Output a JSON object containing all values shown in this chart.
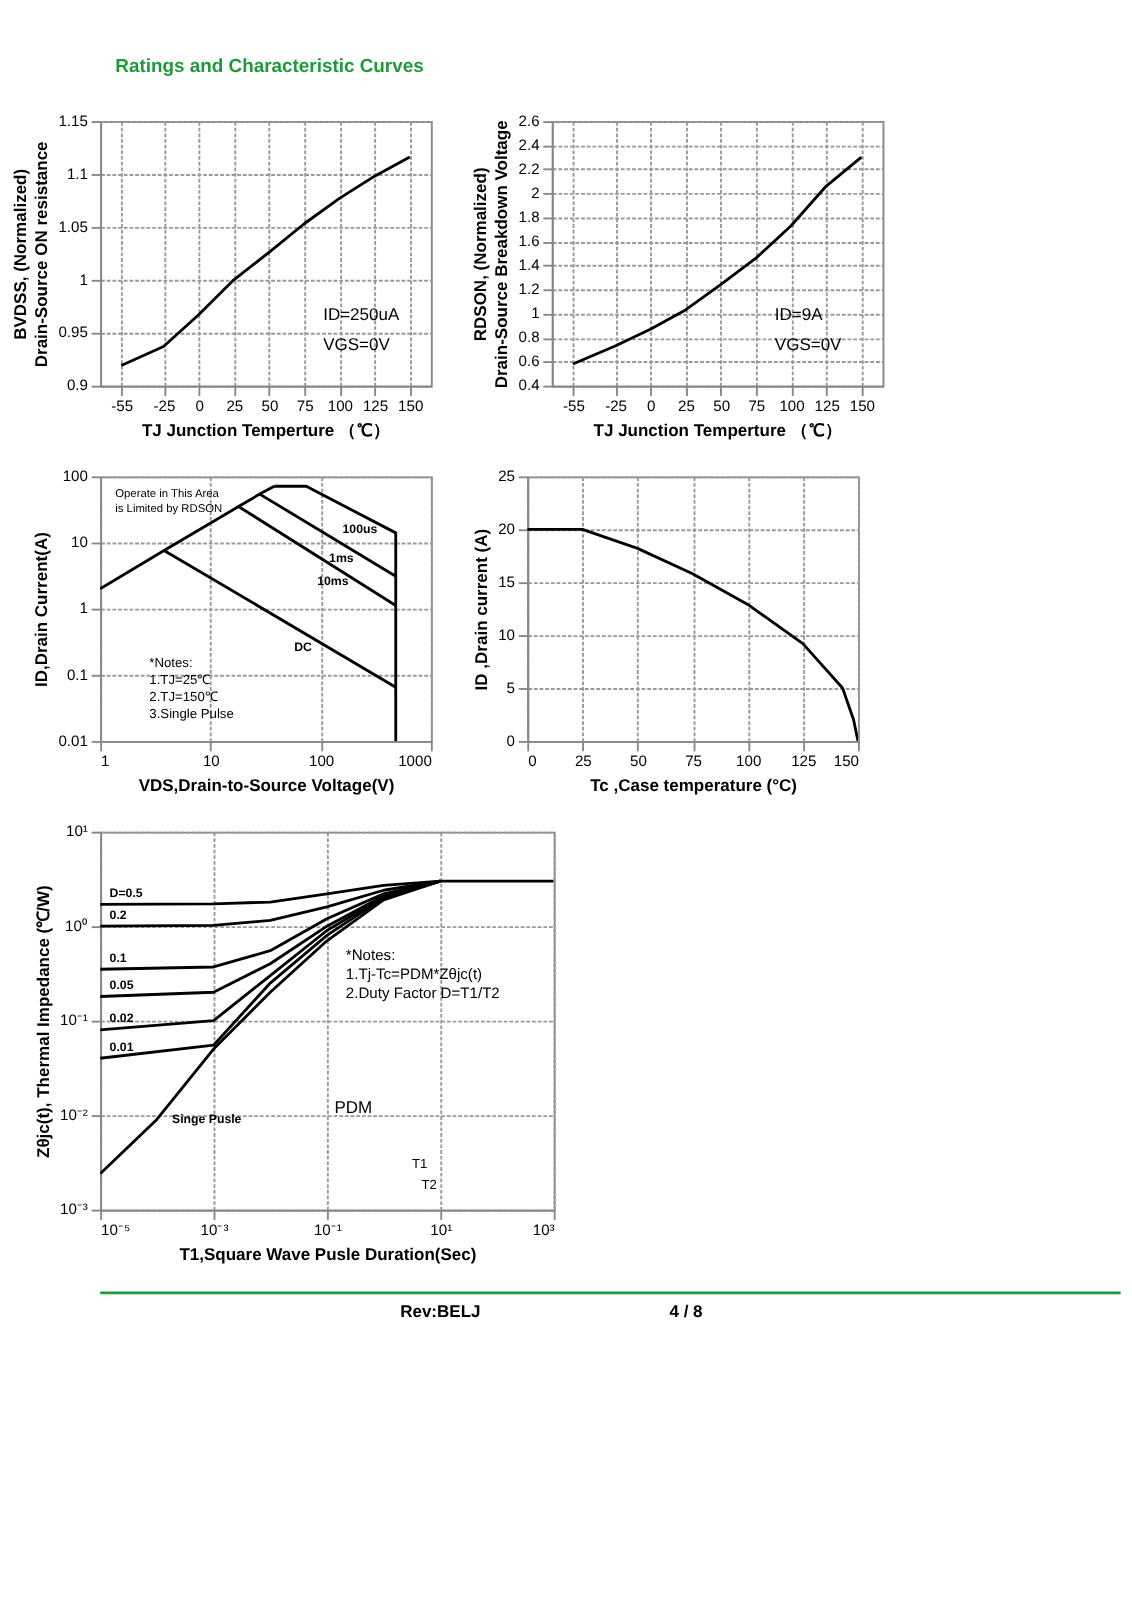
{
  "chart_data": [
    {
      "type": "other",
      "annotations": [
        "Ratings and Characteristic Curves"
      ]
    },
    {
      "type": "line",
      "xlabel": "TJ  Junction Temperture （℃）",
      "ylabel": "BVDSS, (Normalized)\nDrain-Source ON resistance",
      "x": [
        -55,
        -25,
        0,
        25,
        50,
        75,
        100,
        125,
        150
      ],
      "series": [
        {
          "color": "#000000",
          "values": [
            0.919,
            0.937,
            0.967,
            1.0,
            1.026,
            1.053,
            1.077,
            1.098,
            1.116
          ]
        }
      ],
      "xlim": [
        -70,
        165
      ],
      "xticks": [
        -55,
        -25,
        0,
        25,
        50,
        75,
        100,
        125,
        150
      ],
      "ylim": [
        0.9,
        1.15
      ],
      "yticks": [
        0.9,
        0.95,
        1,
        1.05,
        1.1,
        1.15
      ],
      "grid": true,
      "annotations": [
        "ID=250uA",
        "VGS=0V"
      ]
    },
    {
      "type": "line",
      "xlabel": "TJ  Junction Temperture （℃）",
      "ylabel": "RDSON, (Normalized)\nDrain-Source Breakdown Voltage",
      "x": [
        -55,
        -25,
        0,
        25,
        50,
        75,
        100,
        125,
        150
      ],
      "series": [
        {
          "color": "#000000",
          "values": [
            0.58,
            0.73,
            0.87,
            1.03,
            1.24,
            1.46,
            1.73,
            2.06,
            2.3
          ]
        }
      ],
      "xlim": [
        -70,
        165
      ],
      "xticks": [
        -55,
        -25,
        0,
        25,
        50,
        75,
        100,
        125,
        150
      ],
      "ylim": [
        0.4,
        2.6
      ],
      "yticks": [
        0.4,
        0.6,
        0.8,
        1,
        1.2,
        1.4,
        1.6,
        1.8,
        2,
        2.2,
        2.4,
        2.6
      ],
      "grid": true,
      "annotations": [
        "ID=9A",
        "VGS=0V"
      ]
    },
    {
      "type": "line",
      "xlabel": "VDS,Drain-to-Source Voltage(V)",
      "ylabel": "ID,Drain Current(A)",
      "log": "xy",
      "series": [
        {
          "color": "#000000",
          "x": [
            1,
            3.8,
            18,
            28,
            38
          ],
          "values": [
            2,
            7.6,
            35,
            54,
            71
          ]
        },
        {
          "name": "100us",
          "color": "#000000",
          "x": [
            38,
            74,
            480,
            480
          ],
          "values": [
            71,
            71,
            14,
            0.01
          ]
        },
        {
          "name": "1ms",
          "color": "#000000",
          "x": [
            28,
            480
          ],
          "values": [
            54,
            3.1
          ]
        },
        {
          "name": "10ms",
          "color": "#000000",
          "x": [
            18,
            480
          ],
          "values": [
            35,
            1.12
          ]
        },
        {
          "name": "DC",
          "color": "#000000",
          "x": [
            3.8,
            480
          ],
          "values": [
            7.6,
            0.065
          ]
        }
      ],
      "xlim": [
        1,
        1000
      ],
      "xticks": [
        1,
        10,
        100,
        1000
      ],
      "ylim": [
        0.01,
        100
      ],
      "yticks": [
        0.01,
        0.1,
        1,
        10,
        100
      ],
      "grid": true,
      "annotations": [
        "Operate in This Area\nis Limited by RDSON",
        "*Notes:\n1.TJ=25℃\n2.TJ=150℃\n3.Single Pulse"
      ]
    },
    {
      "type": "line",
      "xlabel": "Tc ,Case temperature (°C)",
      "ylabel": "ID ,Drain current (A)",
      "x": [
        0,
        25,
        50,
        75,
        100,
        125,
        143,
        148,
        150
      ],
      "series": [
        {
          "color": "#000000",
          "values": [
            20,
            20,
            18.2,
            15.8,
            12.9,
            9.2,
            5,
            2,
            0
          ]
        }
      ],
      "xlim": [
        0,
        150
      ],
      "xticks": [
        0,
        25,
        50,
        75,
        100,
        125,
        150
      ],
      "ylim": [
        0,
        25
      ],
      "yticks": [
        0,
        5,
        10,
        15,
        20,
        25
      ],
      "grid": true
    },
    {
      "type": "line",
      "xlabel": "T1,Square Wave Pusle Duration(Sec)",
      "ylabel": "Zθjc(t), Thermal  Impedance (℃/W)",
      "log": "xy",
      "series": [
        {
          "name": "D=0.5",
          "color": "#000000",
          "x": [
            1e-05,
            0.001,
            0.01,
            0.1,
            1,
            10
          ],
          "values": [
            1.7,
            1.72,
            1.8,
            2.2,
            2.7,
            3.0
          ]
        },
        {
          "name": "0.2",
          "color": "#000000",
          "x": [
            1e-05,
            0.001,
            0.01,
            0.1,
            1,
            10
          ],
          "values": [
            1.0,
            1.02,
            1.15,
            1.6,
            2.4,
            3.0
          ]
        },
        {
          "name": "0.1",
          "color": "#000000",
          "x": [
            1e-05,
            0.001,
            0.01,
            0.1,
            1,
            10
          ],
          "values": [
            0.35,
            0.37,
            0.55,
            1.2,
            2.2,
            3.0
          ]
        },
        {
          "name": "0.05",
          "color": "#000000",
          "x": [
            1e-05,
            0.001,
            0.01,
            0.1,
            1,
            10
          ],
          "values": [
            0.18,
            0.2,
            0.4,
            1.0,
            2.1,
            3.0
          ]
        },
        {
          "name": "0.02",
          "color": "#000000",
          "x": [
            1e-05,
            0.001,
            0.01,
            0.1,
            1,
            10
          ],
          "values": [
            0.08,
            0.1,
            0.3,
            0.9,
            2.05,
            3.0
          ]
        },
        {
          "name": "0.01",
          "color": "#000000",
          "x": [
            1e-05,
            0.001,
            0.01,
            0.1,
            1,
            10
          ],
          "values": [
            0.04,
            0.055,
            0.25,
            0.8,
            2.0,
            3.0
          ]
        },
        {
          "name": "Singe Pusle",
          "color": "#000000",
          "x": [
            1e-05,
            0.0001,
            0.001,
            0.01,
            0.1,
            1,
            10,
            1000
          ],
          "values": [
            0.0024,
            0.009,
            0.05,
            0.2,
            0.7,
            1.9,
            3.0,
            3.0
          ]
        }
      ],
      "xlim": [
        1e-05,
        1000
      ],
      "xticks": [
        {
          "value": 1e-05,
          "label": "10⁻⁵"
        },
        {
          "value": 0.001,
          "label": "10⁻³"
        },
        {
          "value": 0.1,
          "label": "10⁻¹"
        },
        {
          "value": 10,
          "label": "10¹"
        },
        {
          "value": 1000,
          "label": "10³"
        }
      ],
      "ylim": [
        0.001,
        10
      ],
      "yticks": [
        {
          "value": 0.001,
          "label": "10⁻³"
        },
        {
          "value": 0.01,
          "label": "10⁻²"
        },
        {
          "value": 0.1,
          "label": "10⁻¹"
        },
        {
          "value": 1,
          "label": "10⁰"
        },
        {
          "value": 10,
          "label": "10¹"
        }
      ],
      "grid": true,
      "annotations": [
        "*Notes:\n1.Tj-Tc=PDM*Zθjc(t)\n2.Duty Factor D=T1/T2",
        "PDM",
        "T1",
        "T2"
      ]
    },
    {
      "type": "other",
      "annotations": [
        "Rev:BELJ",
        "4 / 8"
      ]
    }
  ]
}
